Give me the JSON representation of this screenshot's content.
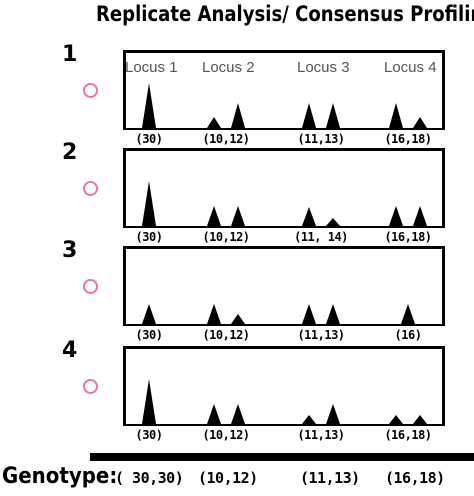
{
  "title": "Replicate Analysis/ Consensus Profiling",
  "loci": [
    "Locus 1",
    "Locus 2",
    "Locus 3",
    "Locus 4"
  ],
  "replicates": [
    {
      "number": "1",
      "peaks": [
        [
          1.0
        ],
        [
          0.25,
          0.55
        ],
        [
          0.55,
          0.55
        ],
        [
          0.55,
          0.25
        ]
      ],
      "alleles": [
        "(30)",
        "(10,12)",
        "(11,13)",
        "(16,18)"
      ]
    },
    {
      "number": "2",
      "peaks": [
        [
          1.0
        ],
        [
          0.45,
          0.45
        ],
        [
          0.42,
          0.18
        ],
        [
          0.45,
          0.45
        ]
      ],
      "alleles": [
        "(30)",
        "(10,12)",
        "(11, 14)",
        "(16,18)"
      ]
    },
    {
      "number": "3",
      "peaks": [
        [
          0.45
        ],
        [
          0.45,
          0.22
        ],
        [
          0.45,
          0.45
        ],
        [
          0.45
        ]
      ],
      "alleles": [
        "(30)",
        "(10,12)",
        "(11,13)",
        "(16)"
      ]
    },
    {
      "number": "4",
      "peaks": [
        [
          1.0
        ],
        [
          0.45,
          0.45
        ],
        [
          0.2,
          0.45
        ],
        [
          0.2,
          0.2
        ]
      ],
      "alleles": [
        "(30)",
        "(10,12)",
        "(11,13)",
        "(16,18)"
      ]
    }
  ],
  "genotype": {
    "label": "Genotype:",
    "values": [
      "( 30,30)",
      "(10,12)",
      "(11,13)",
      "(16,18)"
    ]
  },
  "colors": {
    "marker": "#e8789a",
    "peak": "#000000"
  }
}
